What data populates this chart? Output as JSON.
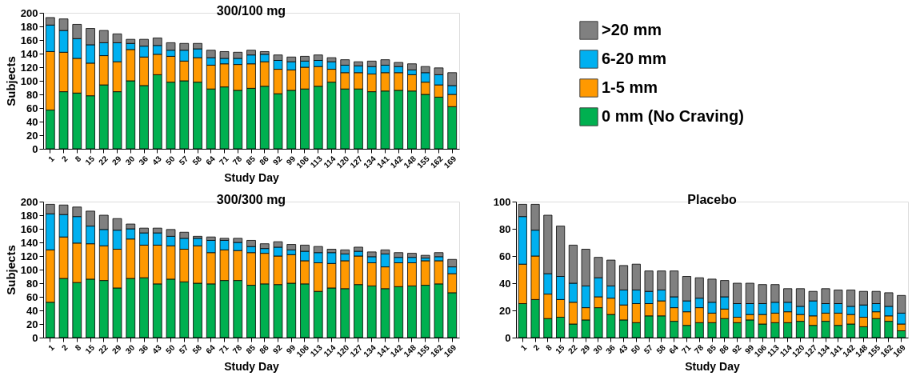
{
  "chart_data": [
    {
      "type": "bar",
      "stacked": true,
      "title": "300/100 mg",
      "xlabel": "Study Day",
      "ylabel": "Subjects",
      "ylim": [
        0,
        200
      ],
      "yticks": [
        0,
        20,
        40,
        60,
        80,
        100,
        120,
        140,
        160,
        180,
        200
      ],
      "grid": false,
      "legend": "right",
      "categories": [
        "1",
        "2",
        "8",
        "15",
        "22",
        "29",
        "30",
        "36",
        "43",
        "50",
        "57",
        "58",
        "64",
        "71",
        "78",
        "85",
        "86",
        "92",
        "99",
        "106",
        "113",
        "114",
        "120",
        "127",
        "134",
        "141",
        "142",
        "148",
        "155",
        "162",
        "169"
      ],
      "series": [
        {
          "name": "0 mm (No Craving)",
          "color": "#00b050",
          "values": [
            57,
            84,
            82,
            78,
            94,
            84,
            100,
            93,
            109,
            98,
            100,
            98,
            88,
            91,
            86,
            89,
            92,
            81,
            86,
            88,
            92,
            98,
            88,
            88,
            84,
            85,
            86,
            85,
            80,
            76,
            62
          ]
        },
        {
          "name": "1-5 mm",
          "color": "#ff9900",
          "values": [
            86,
            58,
            51,
            48,
            43,
            44,
            46,
            42,
            30,
            38,
            29,
            36,
            35,
            34,
            38,
            36,
            36,
            36,
            30,
            32,
            29,
            19,
            24,
            24,
            26,
            27,
            26,
            24,
            18,
            18,
            18
          ]
        },
        {
          "name": "6-20 mm",
          "color": "#00b0f0",
          "values": [
            39,
            32,
            29,
            27,
            19,
            28,
            9,
            16,
            13,
            9,
            16,
            13,
            11,
            8,
            9,
            13,
            11,
            13,
            12,
            9,
            9,
            11,
            11,
            10,
            11,
            11,
            9,
            7,
            14,
            15,
            13
          ]
        },
        {
          "name": ">20 mm",
          "color": "#808080",
          "values": [
            11,
            17,
            21,
            24,
            18,
            13,
            6,
            10,
            11,
            11,
            10,
            8,
            11,
            10,
            9,
            7,
            4,
            8,
            7,
            7,
            8,
            6,
            8,
            6,
            8,
            8,
            6,
            9,
            9,
            10,
            19
          ]
        }
      ]
    },
    {
      "type": "bar",
      "stacked": true,
      "title": "300/300 mg",
      "xlabel": "Study Day",
      "ylabel": "Subjects",
      "ylim": [
        0,
        200
      ],
      "yticks": [
        0,
        20,
        40,
        60,
        80,
        100,
        120,
        140,
        160,
        180,
        200
      ],
      "grid": false,
      "categories": [
        "1",
        "2",
        "8",
        "15",
        "22",
        "29",
        "30",
        "36",
        "43",
        "50",
        "57",
        "58",
        "64",
        "71",
        "78",
        "85",
        "86",
        "92",
        "99",
        "106",
        "113",
        "114",
        "120",
        "127",
        "134",
        "141",
        "142",
        "148",
        "155",
        "162",
        "169"
      ],
      "series": [
        {
          "color": "#00b050",
          "values": [
            52,
            87,
            81,
            86,
            84,
            73,
            87,
            88,
            79,
            86,
            82,
            80,
            79,
            84,
            84,
            77,
            79,
            78,
            80,
            79,
            68,
            73,
            72,
            78,
            76,
            72,
            75,
            76,
            77,
            79,
            66
          ]
        },
        {
          "color": "#ff9900",
          "values": [
            77,
            61,
            58,
            52,
            51,
            57,
            58,
            48,
            57,
            49,
            48,
            55,
            46,
            45,
            44,
            48,
            45,
            42,
            42,
            34,
            42,
            36,
            41,
            42,
            34,
            32,
            35,
            34,
            36,
            34,
            28
          ]
        },
        {
          "color": "#00b0f0",
          "values": [
            53,
            33,
            39,
            26,
            24,
            28,
            15,
            18,
            18,
            14,
            16,
            11,
            18,
            14,
            12,
            9,
            7,
            13,
            7,
            14,
            15,
            16,
            10,
            7,
            9,
            19,
            8,
            8,
            4,
            6,
            10
          ]
        },
        {
          "color": "#808080",
          "values": [
            14,
            14,
            14,
            22,
            21,
            17,
            7,
            7,
            7,
            10,
            9,
            3,
            5,
            3,
            6,
            9,
            7,
            8,
            8,
            9,
            9,
            5,
            6,
            6,
            7,
            6,
            7,
            6,
            4,
            6,
            11
          ]
        }
      ]
    },
    {
      "type": "bar",
      "stacked": true,
      "title": "Placebo",
      "xlabel": "Study Day",
      "ylim": [
        0,
        100
      ],
      "yticks": [
        0,
        20,
        40,
        60,
        80,
        100
      ],
      "grid": false,
      "categories": [
        "1",
        "2",
        "8",
        "15",
        "22",
        "29",
        "30",
        "36",
        "43",
        "50",
        "57",
        "58",
        "64",
        "71",
        "78",
        "85",
        "86",
        "92",
        "99",
        "106",
        "113",
        "114",
        "120",
        "127",
        "134",
        "141",
        "142",
        "148",
        "155",
        "162",
        "169"
      ],
      "series": [
        {
          "color": "#00b050",
          "values": [
            25,
            28,
            14,
            15,
            10,
            13,
            22,
            17,
            13,
            11,
            16,
            16,
            12,
            9,
            11,
            11,
            14,
            11,
            13,
            10,
            11,
            11,
            12,
            9,
            12,
            9,
            10,
            8,
            14,
            12,
            5
          ]
        },
        {
          "color": "#ff9900",
          "values": [
            29,
            32,
            18,
            13,
            16,
            9,
            8,
            12,
            11,
            14,
            9,
            11,
            10,
            10,
            11,
            7,
            7,
            4,
            4,
            7,
            7,
            8,
            5,
            7,
            6,
            9,
            7,
            7,
            5,
            4,
            5
          ]
        },
        {
          "color": "#00b0f0",
          "values": [
            35,
            19,
            15,
            17,
            14,
            16,
            14,
            9,
            11,
            10,
            9,
            8,
            8,
            8,
            7,
            8,
            9,
            10,
            8,
            8,
            8,
            7,
            6,
            11,
            7,
            7,
            6,
            9,
            6,
            7,
            8
          ]
        },
        {
          "color": "#808080",
          "values": [
            9,
            19,
            43,
            37,
            28,
            27,
            15,
            19,
            18,
            19,
            15,
            14,
            19,
            18,
            15,
            17,
            12,
            15,
            15,
            14,
            13,
            10,
            13,
            7,
            11,
            10,
            12,
            10,
            9,
            10,
            13
          ]
        }
      ]
    }
  ]
}
